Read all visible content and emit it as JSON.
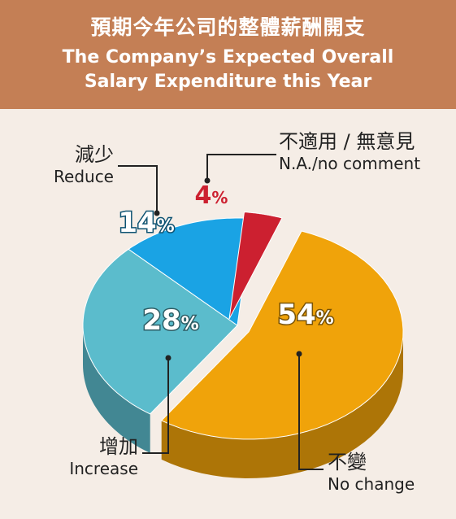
{
  "header": {
    "title_zh": "預期今年公司的整體薪酬開支",
    "title_en_line1": "The Company’s Expected Overall",
    "title_en_line2": "Salary Expenditure this Year"
  },
  "chart_data": {
    "type": "pie",
    "title": "The Company’s Expected Overall Salary Expenditure this Year",
    "slices": [
      {
        "label_zh": "不變",
        "label_en": "No change",
        "value": 54,
        "display": "54",
        "color": "#f0a30a"
      },
      {
        "label_zh": "增加",
        "label_en": "Increase",
        "value": 28,
        "display": "28",
        "color": "#5bbccc"
      },
      {
        "label_zh": "減少",
        "label_en": "Reduce",
        "value": 14,
        "display": "14",
        "color": "#1aa3e4"
      },
      {
        "label_zh": "不適用 / 無意見",
        "label_en": "N.A./no comment",
        "value": 4,
        "display": "4",
        "color": "#cc2030"
      }
    ],
    "unit": "%"
  }
}
